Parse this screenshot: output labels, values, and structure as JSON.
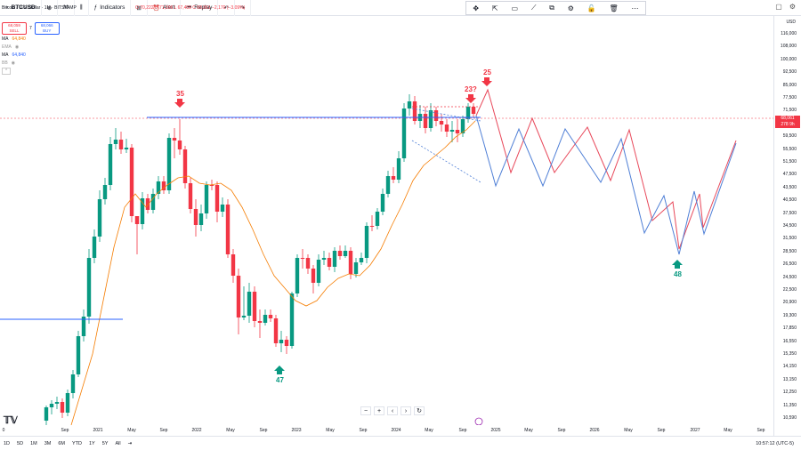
{
  "topbar": {
    "symbol": "BTCUSD",
    "interval": "M",
    "indicators_label": "Indicators",
    "alert_label": "Alert",
    "replay_label": "Replay"
  },
  "legend": {
    "title": "Bitcoin / U.S. Dollar · 1M · BITSTAMP",
    "ohlc": "O 70,222  H 71,596  L 67,459  C 68,061  −2,170 (−3.09%)",
    "sell_price": "68,059",
    "sell_label": "SELL",
    "spread": "7",
    "buy_price": "68,066",
    "buy_label": "BUY",
    "indicators": [
      {
        "name": "MA",
        "value": "64,840"
      },
      {
        "name": "EMA",
        "value": ""
      },
      {
        "name": "MA",
        "value": "64,840"
      },
      {
        "name": "BB",
        "value": ""
      }
    ]
  },
  "axis": {
    "currency": "USD",
    "ticks": [
      "116,000",
      "108,000",
      "100,000",
      "92,500",
      "85,000",
      "77,500",
      "71,500",
      "65,500",
      "59,500",
      "55,500",
      "51,500",
      "47,500",
      "43,500",
      "40,500",
      "37,500",
      "34,500",
      "31,500",
      "28,500",
      "26,500",
      "24,500",
      "22,500",
      "20,900",
      "19,300",
      "17,850",
      "16,550",
      "15,350",
      "14,150",
      "13,150",
      "12,250",
      "11,350",
      "10,590"
    ],
    "current_price": "68,061",
    "countdown": "278 9h"
  },
  "xaxis": {
    "labels": [
      "0",
      "Sep",
      "2021",
      "May",
      "Sep",
      "2022",
      "May",
      "Sep",
      "2023",
      "May",
      "Sep",
      "2024",
      "May",
      "Sep",
      "2025",
      "May",
      "Sep",
      "2026",
      "May",
      "Sep",
      "2027",
      "May",
      "Sep"
    ]
  },
  "annotations": {
    "a35": "35",
    "a47": "47",
    "a23": "23?",
    "a25": "25",
    "a48": "48"
  },
  "colors": {
    "up": "#089981",
    "down": "#f23645",
    "ma": "#f57c00",
    "projection_blue": "#4f7fd6",
    "projection_red": "#e8485a",
    "hline": "#2962ff"
  },
  "timeframes": [
    "1D",
    "5D",
    "1M",
    "3M",
    "6M",
    "YTD",
    "1Y",
    "5Y",
    "All"
  ],
  "status_time": "10:57:12 (UTC-5)"
}
